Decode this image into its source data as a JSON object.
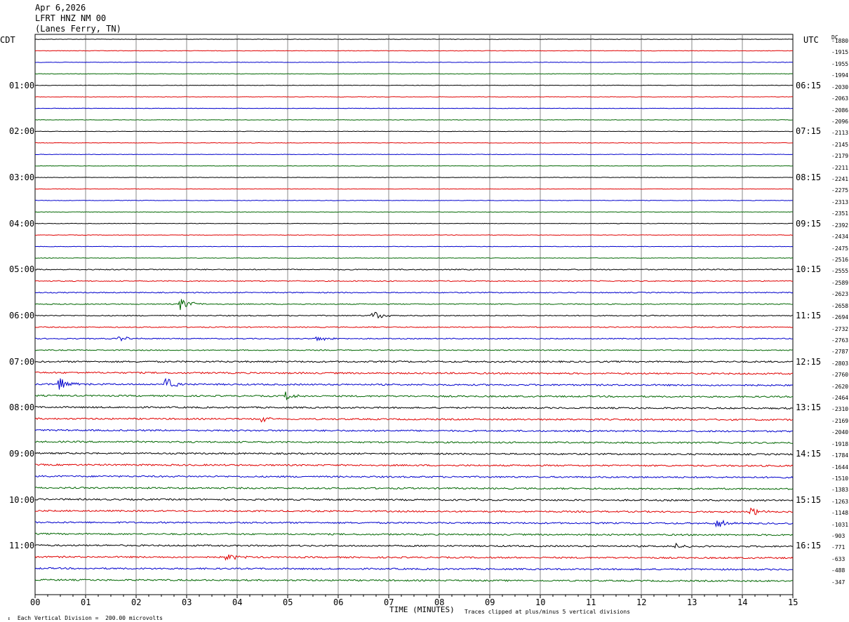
{
  "header": {
    "date": "Apr 6,2026",
    "station": "LFRT HNZ NM 00",
    "location": "(Lanes Ferry, TN)"
  },
  "left_zone": "CDT",
  "right_zone": "UTC",
  "dc_header": "DC",
  "footer": {
    "scale": "Each Vertical Division =  200.00 microvolts",
    "clip": "Traces clipped at plus/minus 5 vertical divisions"
  },
  "chart_data": {
    "type": "line",
    "title": "LFRT HNZ NM 00",
    "xlabel": "TIME (MINUTES)",
    "ylabel": "",
    "xlim": [
      0,
      15
    ],
    "x_ticks": [
      "00",
      "01",
      "02",
      "03",
      "04",
      "05",
      "06",
      "07",
      "08",
      "09",
      "10",
      "11",
      "12",
      "13",
      "14",
      "15"
    ],
    "trace_minutes": 15,
    "trace_colors": [
      "#000000",
      "#e00000",
      "#0000cc",
      "#006600"
    ],
    "left_hour_labels": [
      "01:00",
      "02:00",
      "03:00",
      "04:00",
      "05:00",
      "06:00",
      "07:00",
      "08:00",
      "09:00",
      "10:00",
      "11:00"
    ],
    "right_hour_labels": [
      "06:15",
      "07:15",
      "08:15",
      "09:15",
      "10:15",
      "11:15",
      "12:15",
      "13:15",
      "14:15",
      "15:15",
      "16:15"
    ],
    "dc_offsets": [
      "-1880",
      "-1915",
      "-1955",
      "-1994",
      "-2030",
      "-2063",
      "-2086",
      "-2096",
      "-2113",
      "-2145",
      "-2179",
      "-2211",
      "-2241",
      "-2275",
      "-2313",
      "-2351",
      "-2392",
      "-2434",
      "-2475",
      "-2516",
      "-2555",
      "-2589",
      "-2623",
      "-2658",
      "-2694",
      "-2732",
      "-2763",
      "-2787",
      "-2803",
      "-2760",
      "-2620",
      "-2464",
      "-2310",
      "-2169",
      "-2040",
      "-1918",
      "-1784",
      "-1644",
      "-1510",
      "-1383",
      "-1263",
      "-1148",
      "-1031",
      "-903",
      "-771",
      "-633",
      "-488",
      "-347"
    ],
    "events": [
      {
        "trace": 23,
        "minute": 2.9,
        "amplitude": "high"
      },
      {
        "trace": 30,
        "minute": 0.5,
        "amplitude": "high"
      },
      {
        "trace": 30,
        "minute": 2.6,
        "amplitude": "high"
      },
      {
        "trace": 31,
        "minute": 5.0,
        "amplitude": "medium"
      },
      {
        "trace": 24,
        "minute": 6.7,
        "amplitude": "medium"
      },
      {
        "trace": 45,
        "minute": 3.8,
        "amplitude": "medium"
      },
      {
        "trace": 42,
        "minute": 13.5,
        "amplitude": "medium"
      },
      {
        "trace": 41,
        "minute": 14.2,
        "amplitude": "medium"
      },
      {
        "trace": 44,
        "minute": 12.7,
        "amplitude": "low"
      },
      {
        "trace": 33,
        "minute": 4.5,
        "amplitude": "low"
      },
      {
        "trace": 26,
        "minute": 1.7,
        "amplitude": "low"
      },
      {
        "trace": 26,
        "minute": 5.6,
        "amplitude": "low"
      }
    ]
  }
}
